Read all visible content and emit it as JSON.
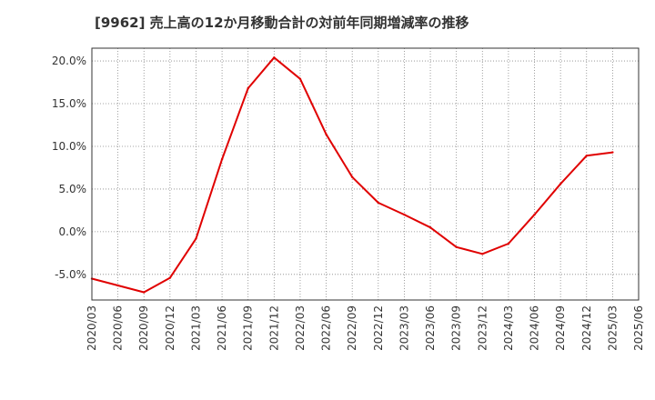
{
  "chart_data": {
    "type": "line",
    "title": "[9962]  売上高の12か月移動合計の対前年同期増減率の推移",
    "xlabel": "",
    "ylabel": "",
    "ylim": [
      -8.0,
      21.5
    ],
    "yticks": [
      20.0,
      15.0,
      10.0,
      5.0,
      0.0,
      -5.0
    ],
    "ytick_labels": [
      "20.0%",
      "15.0%",
      "10.0%",
      "5.0%",
      "0.0%",
      "-5.0%"
    ],
    "categories": [
      "2020/03",
      "2020/06",
      "2020/09",
      "2020/12",
      "2021/03",
      "2021/06",
      "2021/09",
      "2021/12",
      "2022/03",
      "2022/06",
      "2022/09",
      "2022/12",
      "2023/03",
      "2023/06",
      "2023/09",
      "2023/12",
      "2024/03",
      "2024/06",
      "2024/09",
      "2024/12",
      "2025/03",
      "2025/06"
    ],
    "series": [
      {
        "name": "対前年同期増減率",
        "color": "#e00000",
        "values": [
          -5.5,
          -6.3,
          -7.1,
          -5.4,
          -0.8,
          8.5,
          16.8,
          20.4,
          17.9,
          11.4,
          6.4,
          3.4,
          2.0,
          0.5,
          -1.8,
          -2.6,
          -1.4,
          2.0,
          5.6,
          8.9,
          9.3,
          null
        ]
      }
    ],
    "grid": true,
    "gridStyle": "dotted"
  }
}
